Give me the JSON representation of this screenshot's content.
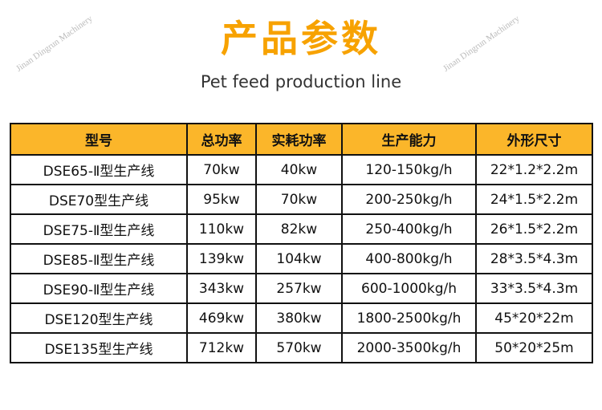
{
  "header": {
    "title": "产品参数",
    "subtitle": "Pet feed production line"
  },
  "watermarks": [
    "Jinan Dingrun Machinery",
    "Jinan Dingrun Machinery"
  ],
  "table": {
    "columns": [
      "型号",
      "总功率",
      "实耗功率",
      "生产能力",
      "外形尺寸"
    ],
    "rows": [
      [
        "DSE65-Ⅱ型生产线",
        "70kw",
        "40kw",
        "120-150kg/h",
        "22*1.2*2.2m"
      ],
      [
        "DSE70型生产线",
        "95kw",
        "70kw",
        "200-250kg/h",
        "24*1.5*2.2m"
      ],
      [
        "DSE75-Ⅱ型生产线",
        "110kw",
        "82kw",
        "250-400kg/h",
        "26*1.5*2.2m"
      ],
      [
        "DSE85-Ⅱ型生产线",
        "139kw",
        "104kw",
        "400-800kg/h",
        "28*3.5*4.3m"
      ],
      [
        "DSE90-Ⅱ型生产线",
        "343kw",
        "257kw",
        "600-1000kg/h",
        "33*3.5*4.3m"
      ],
      [
        "DSE120型生产线",
        "469kw",
        "380kw",
        "1800-2500kg/h",
        "45*20*22m"
      ],
      [
        "DSE135型生产线",
        "712kw",
        "570kw",
        "2000-3500kg/h",
        "50*20*25m"
      ]
    ]
  }
}
